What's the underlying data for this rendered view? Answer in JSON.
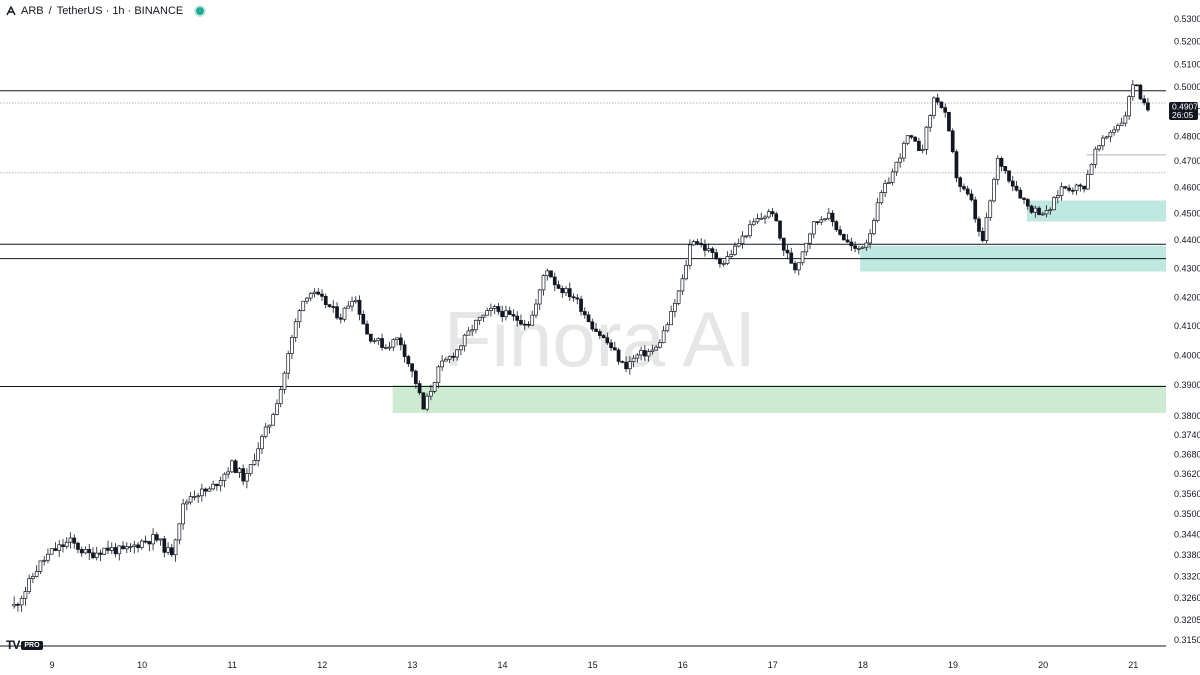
{
  "header": {
    "symbol": "ARB",
    "separator": "/",
    "pair_rest": "TetherUS · 1h · BINANCE",
    "status_color": "#22ab94"
  },
  "watermark": "Finora AI",
  "logo": {
    "mark": "TV",
    "badge": "PRO"
  },
  "colors": {
    "bull_body": "#ffffff",
    "bear_body": "#131722",
    "wick": "#131722",
    "zone_teal": "#bfe8e0",
    "zone_green": "#cdebd1",
    "line": "#131722",
    "dotted": "#9598a1",
    "badge_bg": "#131722"
  },
  "price_axis": {
    "labels": [
      "0.5300",
      "0.5200",
      "0.5100",
      "0.5000",
      "0.4900",
      "0.4800",
      "0.4700",
      "0.4600",
      "0.4500",
      "0.4400",
      "0.4300",
      "0.4200",
      "0.4100",
      "0.4000",
      "0.3900",
      "0.3800",
      "0.3740",
      "0.3680",
      "0.3620",
      "0.3560",
      "0.3500",
      "0.3440",
      "0.3380",
      "0.3320",
      "0.3260",
      "0.3205",
      "0.3150"
    ],
    "current_price": "0.4907",
    "countdown": "26:05"
  },
  "time_axis": {
    "labels": [
      "9",
      "10",
      "11",
      "12",
      "13",
      "14",
      "15",
      "16",
      "17",
      "18",
      "19",
      "20",
      "21"
    ]
  },
  "chart_data": {
    "type": "candlestick",
    "symbol": "ARB/USDT",
    "interval": "1h",
    "x_range_days": [
      9,
      21
    ],
    "y_range": [
      0.315,
      0.53
    ],
    "horizontal_lines": [
      0.4985,
      0.4385,
      0.4335,
      0.3895
    ],
    "dotted_lines": [
      0.4935,
      0.4655
    ],
    "short_lines": [
      {
        "price": 0.4725,
        "from_day": 20.48
      }
    ],
    "zones": [
      {
        "from_day": 19.82,
        "top": 0.455,
        "bottom": 0.447,
        "color": "teal"
      },
      {
        "from_day": 17.97,
        "top": 0.438,
        "bottom": 0.429,
        "color": "teal"
      },
      {
        "from_day": 12.78,
        "top": 0.39,
        "bottom": 0.381,
        "color": "green"
      }
    ],
    "waypoints": [
      [
        8.58,
        0.324
      ],
      [
        8.7,
        0.328
      ],
      [
        8.85,
        0.335
      ],
      [
        9.0,
        0.339
      ],
      [
        9.2,
        0.342
      ],
      [
        9.4,
        0.338
      ],
      [
        9.6,
        0.34
      ],
      [
        9.8,
        0.339
      ],
      [
        10.0,
        0.342
      ],
      [
        10.15,
        0.343
      ],
      [
        10.32,
        0.338
      ],
      [
        10.45,
        0.352
      ],
      [
        10.55,
        0.356
      ],
      [
        10.75,
        0.357
      ],
      [
        11.0,
        0.365
      ],
      [
        11.15,
        0.36
      ],
      [
        11.28,
        0.37
      ],
      [
        11.42,
        0.378
      ],
      [
        11.55,
        0.39
      ],
      [
        11.65,
        0.404
      ],
      [
        11.75,
        0.417
      ],
      [
        11.85,
        0.422
      ],
      [
        12.0,
        0.419
      ],
      [
        12.2,
        0.413
      ],
      [
        12.35,
        0.421
      ],
      [
        12.5,
        0.407
      ],
      [
        12.7,
        0.403
      ],
      [
        12.85,
        0.406
      ],
      [
        13.05,
        0.39
      ],
      [
        13.12,
        0.382
      ],
      [
        13.3,
        0.396
      ],
      [
        13.5,
        0.402
      ],
      [
        13.7,
        0.411
      ],
      [
        13.9,
        0.416
      ],
      [
        14.1,
        0.413
      ],
      [
        14.3,
        0.411
      ],
      [
        14.4,
        0.42
      ],
      [
        14.48,
        0.431
      ],
      [
        14.6,
        0.424
      ],
      [
        14.8,
        0.42
      ],
      [
        15.0,
        0.41
      ],
      [
        15.2,
        0.403
      ],
      [
        15.35,
        0.396
      ],
      [
        15.5,
        0.4
      ],
      [
        15.7,
        0.402
      ],
      [
        15.85,
        0.412
      ],
      [
        16.0,
        0.426
      ],
      [
        16.1,
        0.441
      ],
      [
        16.25,
        0.437
      ],
      [
        16.45,
        0.432
      ],
      [
        16.6,
        0.438
      ],
      [
        16.8,
        0.447
      ],
      [
        17.0,
        0.451
      ],
      [
        17.1,
        0.438
      ],
      [
        17.25,
        0.43
      ],
      [
        17.45,
        0.446
      ],
      [
        17.6,
        0.45
      ],
      [
        17.8,
        0.44
      ],
      [
        17.92,
        0.436
      ],
      [
        18.05,
        0.44
      ],
      [
        18.2,
        0.457
      ],
      [
        18.35,
        0.467
      ],
      [
        18.5,
        0.48
      ],
      [
        18.65,
        0.474
      ],
      [
        18.8,
        0.497
      ],
      [
        18.92,
        0.488
      ],
      [
        19.05,
        0.462
      ],
      [
        19.2,
        0.455
      ],
      [
        19.32,
        0.438
      ],
      [
        19.42,
        0.456
      ],
      [
        19.5,
        0.471
      ],
      [
        19.65,
        0.462
      ],
      [
        19.85,
        0.452
      ],
      [
        20.05,
        0.45
      ],
      [
        20.2,
        0.46
      ],
      [
        20.45,
        0.46
      ],
      [
        20.58,
        0.474
      ],
      [
        20.75,
        0.482
      ],
      [
        20.9,
        0.487
      ],
      [
        21.02,
        0.505
      ],
      [
        21.08,
        0.494
      ],
      [
        21.18,
        0.4907
      ]
    ]
  }
}
